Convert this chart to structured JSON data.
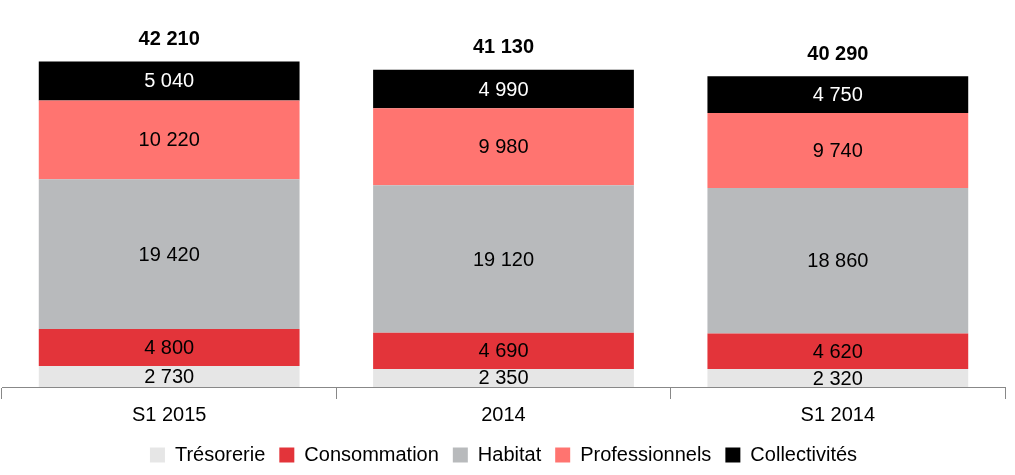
{
  "chart_data": {
    "type": "bar",
    "stacked": true,
    "data_labels": true,
    "legend": "bottom",
    "grid": false,
    "categories": [
      "S1 2015",
      "2014",
      "S1 2014"
    ],
    "series": [
      {
        "name": "Trésorerie",
        "color": "#e6e6e6",
        "values": [
          2730,
          2350,
          2320
        ]
      },
      {
        "name": "Consommation",
        "color": "#e3343a",
        "values": [
          4800,
          4690,
          4620
        ]
      },
      {
        "name": "Habitat",
        "color": "#b8babc",
        "values": [
          19420,
          19120,
          18860
        ]
      },
      {
        "name": "Professionnels",
        "color": "#ff7470",
        "values": [
          10220,
          9980,
          9740
        ]
      },
      {
        "name": "Collectivités",
        "color": "#000000",
        "values": [
          5040,
          4990,
          4750
        ]
      }
    ],
    "totals": [
      "42 210",
      "41 130",
      "40 290"
    ]
  }
}
